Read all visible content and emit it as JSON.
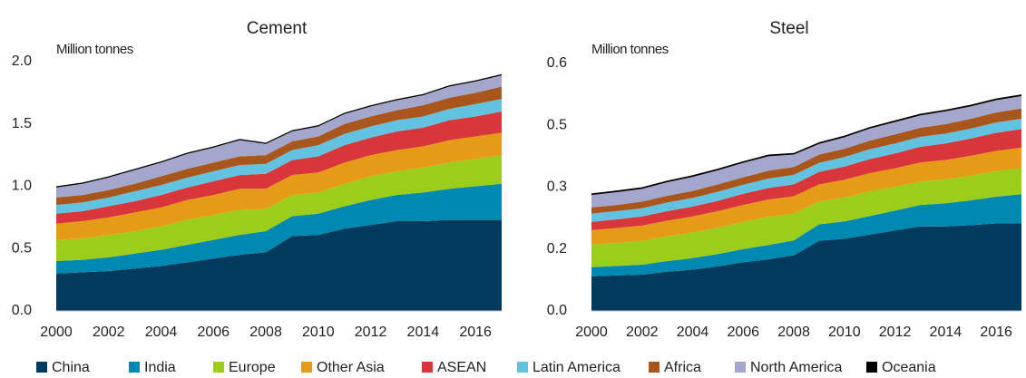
{
  "chart_data": [
    {
      "type": "stacked-area",
      "title": "Cement",
      "y_label": "Million tonnes",
      "x": [
        2000,
        2001,
        2002,
        2003,
        2004,
        2005,
        2006,
        2007,
        2008,
        2009,
        2010,
        2011,
        2012,
        2013,
        2014,
        2015,
        2016,
        2017
      ],
      "xlim": [
        2000,
        2017
      ],
      "xticks": [
        2000,
        2002,
        2004,
        2006,
        2008,
        2010,
        2012,
        2014,
        2016
      ],
      "ylim": [
        0,
        2
      ],
      "yticks": [
        {
          "value": 0,
          "label": "0.0"
        },
        0.5,
        {
          "value": 1,
          "label": "1.0"
        },
        1.5,
        {
          "value": 2,
          "label": "2.0"
        }
      ],
      "series": [
        {
          "name": "China",
          "color": "#003a5c",
          "values": [
            0.3,
            0.31,
            0.32,
            0.34,
            0.36,
            0.39,
            0.42,
            0.45,
            0.47,
            0.6,
            0.61,
            0.66,
            0.69,
            0.72,
            0.72,
            0.73,
            0.73,
            0.73
          ]
        },
        {
          "name": "India",
          "color": "#0089b0",
          "values": [
            0.1,
            0.1,
            0.11,
            0.12,
            0.13,
            0.14,
            0.15,
            0.16,
            0.17,
            0.16,
            0.17,
            0.18,
            0.2,
            0.21,
            0.23,
            0.25,
            0.27,
            0.29
          ]
        },
        {
          "name": "Europe",
          "color": "#9ccd1b",
          "values": [
            0.17,
            0.17,
            0.18,
            0.18,
            0.19,
            0.2,
            0.2,
            0.2,
            0.18,
            0.17,
            0.17,
            0.18,
            0.19,
            0.19,
            0.2,
            0.21,
            0.22,
            0.23
          ]
        },
        {
          "name": "Other Asia",
          "color": "#e59b17",
          "values": [
            0.13,
            0.14,
            0.14,
            0.15,
            0.15,
            0.16,
            0.16,
            0.17,
            0.16,
            0.16,
            0.16,
            0.17,
            0.17,
            0.17,
            0.17,
            0.18,
            0.18,
            0.18
          ]
        },
        {
          "name": "ASEAN",
          "color": "#d8363a",
          "values": [
            0.08,
            0.08,
            0.09,
            0.09,
            0.1,
            0.1,
            0.11,
            0.11,
            0.12,
            0.12,
            0.13,
            0.14,
            0.14,
            0.15,
            0.15,
            0.16,
            0.16,
            0.17
          ]
        },
        {
          "name": "Latin America",
          "color": "#62c3e0",
          "values": [
            0.07,
            0.07,
            0.07,
            0.08,
            0.08,
            0.08,
            0.08,
            0.08,
            0.08,
            0.08,
            0.09,
            0.09,
            0.09,
            0.09,
            0.09,
            0.09,
            0.1,
            0.1
          ]
        },
        {
          "name": "Africa",
          "color": "#a9561d",
          "values": [
            0.06,
            0.06,
            0.06,
            0.06,
            0.07,
            0.07,
            0.07,
            0.07,
            0.07,
            0.07,
            0.07,
            0.08,
            0.08,
            0.08,
            0.09,
            0.09,
            0.09,
            0.1
          ]
        },
        {
          "name": "North America",
          "color": "#a3a7cc",
          "values": [
            0.08,
            0.09,
            0.1,
            0.11,
            0.11,
            0.12,
            0.12,
            0.13,
            0.09,
            0.08,
            0.08,
            0.08,
            0.08,
            0.08,
            0.08,
            0.09,
            0.09,
            0.09
          ]
        },
        {
          "name": "Oceania",
          "color": "#000000",
          "values": [
            0.01,
            0.01,
            0.01,
            0.01,
            0.01,
            0.01,
            0.01,
            0.01,
            0.01,
            0.01,
            0.01,
            0.01,
            0.01,
            0.01,
            0.01,
            0.01,
            0.01,
            0.01
          ]
        }
      ]
    },
    {
      "type": "stacked-area",
      "title": "Steel",
      "y_label": "Million tonnes",
      "x": [
        2000,
        2001,
        2002,
        2003,
        2004,
        2005,
        2006,
        2007,
        2008,
        2009,
        2010,
        2011,
        2012,
        2013,
        2014,
        2015,
        2016,
        2017
      ],
      "xlim": [
        2000,
        2017
      ],
      "xticks": [
        2000,
        2002,
        2004,
        2006,
        2008,
        2010,
        2012,
        2014,
        2016
      ],
      "ylim": [
        0,
        0.6
      ],
      "yticks": [
        {
          "value": 0,
          "label": "0.0"
        },
        {
          "value": 0.15,
          "label": "0.2"
        },
        0.3,
        {
          "value": 0.45,
          "label": "0.5"
        },
        0.6
      ],
      "series": [
        {
          "name": "China",
          "color": "#003a5c",
          "values": [
            0.084,
            0.086,
            0.088,
            0.095,
            0.1,
            0.108,
            0.118,
            0.125,
            0.135,
            0.17,
            0.175,
            0.185,
            0.195,
            0.205,
            0.205,
            0.208,
            0.212,
            0.213
          ]
        },
        {
          "name": "India",
          "color": "#0089b0",
          "values": [
            0.022,
            0.023,
            0.024,
            0.026,
            0.028,
            0.03,
            0.032,
            0.035,
            0.036,
            0.04,
            0.042,
            0.045,
            0.048,
            0.052,
            0.056,
            0.06,
            0.065,
            0.07
          ]
        },
        {
          "name": "Europe",
          "color": "#9ccd1b",
          "values": [
            0.055,
            0.056,
            0.058,
            0.06,
            0.062,
            0.064,
            0.066,
            0.068,
            0.065,
            0.055,
            0.058,
            0.06,
            0.058,
            0.057,
            0.058,
            0.06,
            0.062,
            0.063
          ]
        },
        {
          "name": "Other Asia",
          "color": "#e59b17",
          "values": [
            0.035,
            0.036,
            0.037,
            0.038,
            0.039,
            0.04,
            0.041,
            0.042,
            0.042,
            0.042,
            0.043,
            0.044,
            0.045,
            0.046,
            0.047,
            0.048,
            0.049,
            0.05
          ]
        },
        {
          "name": "ASEAN",
          "color": "#d8363a",
          "values": [
            0.02,
            0.021,
            0.022,
            0.023,
            0.024,
            0.025,
            0.027,
            0.028,
            0.029,
            0.03,
            0.032,
            0.034,
            0.036,
            0.038,
            0.04,
            0.042,
            0.044,
            0.045
          ]
        },
        {
          "name": "Latin America",
          "color": "#62c3e0",
          "values": [
            0.02,
            0.02,
            0.02,
            0.021,
            0.021,
            0.022,
            0.022,
            0.023,
            0.023,
            0.022,
            0.023,
            0.024,
            0.024,
            0.024,
            0.024,
            0.024,
            0.025,
            0.025
          ]
        },
        {
          "name": "Africa",
          "color": "#a9561d",
          "values": [
            0.015,
            0.015,
            0.016,
            0.016,
            0.017,
            0.018,
            0.018,
            0.019,
            0.019,
            0.02,
            0.02,
            0.021,
            0.022,
            0.022,
            0.023,
            0.024,
            0.024,
            0.025
          ]
        },
        {
          "name": "North America",
          "color": "#a3a7cc",
          "values": [
            0.03,
            0.031,
            0.031,
            0.033,
            0.034,
            0.034,
            0.035,
            0.035,
            0.03,
            0.026,
            0.028,
            0.029,
            0.03,
            0.03,
            0.031,
            0.03,
            0.03,
            0.03
          ]
        },
        {
          "name": "Oceania",
          "color": "#000000",
          "values": [
            0.004,
            0.004,
            0.004,
            0.004,
            0.004,
            0.004,
            0.004,
            0.004,
            0.004,
            0.004,
            0.004,
            0.004,
            0.004,
            0.004,
            0.004,
            0.004,
            0.004,
            0.004
          ]
        }
      ]
    }
  ]
}
